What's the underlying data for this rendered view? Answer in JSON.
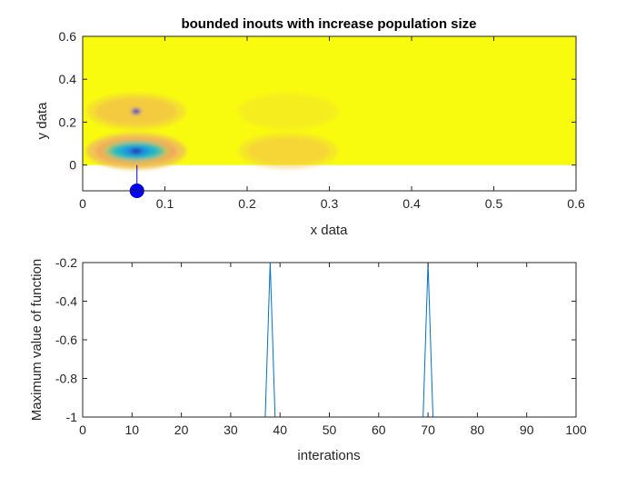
{
  "chart_data": [
    {
      "type": "heatmap",
      "title": "bounded inouts with increase population size",
      "xlabel": "x data",
      "ylabel": "y data",
      "xlim": [
        0,
        0.6
      ],
      "ylim": [
        -0.12,
        0.6
      ],
      "heatmap_ylim": [
        0,
        0.6
      ],
      "xticks": [
        0,
        0.1,
        0.2,
        0.3,
        0.4,
        0.5,
        0.6
      ],
      "xtick_labels": [
        "0",
        "0.1",
        "0.2",
        "0.3",
        "0.4",
        "0.5",
        "0.6"
      ],
      "yticks": [
        0,
        0.2,
        0.4,
        0.6
      ],
      "ytick_labels": [
        "0",
        "0.2",
        "0.4",
        "0.6"
      ],
      "colormap": "parula",
      "background_color": "#f9fb0e",
      "blobs": [
        {
          "x": 0.065,
          "y": 0.065,
          "intensity": 1.0
        },
        {
          "x": 0.065,
          "y": 0.25,
          "intensity": 0.55
        },
        {
          "x": 0.25,
          "y": 0.065,
          "intensity": 0.35
        },
        {
          "x": 0.25,
          "y": 0.25,
          "intensity": 0.12
        }
      ],
      "stem_marker": {
        "x": 0.066,
        "y": -0.12,
        "y_top": 0.0,
        "color": "#0000ff"
      },
      "grid": false
    },
    {
      "type": "line",
      "title": "",
      "xlabel": "interations",
      "ylabel": "Maximum value of function",
      "xlim": [
        0,
        100
      ],
      "ylim": [
        -1,
        -0.2
      ],
      "xticks": [
        0,
        10,
        20,
        30,
        40,
        50,
        60,
        70,
        80,
        90,
        100
      ],
      "xtick_labels": [
        "0",
        "10",
        "20",
        "30",
        "40",
        "50",
        "60",
        "70",
        "80",
        "90",
        "100"
      ],
      "yticks": [
        -1,
        -0.8,
        -0.6,
        -0.4,
        -0.2
      ],
      "ytick_labels": [
        "-1",
        "-0.8",
        "-0.6",
        "-0.4",
        "-0.2"
      ],
      "series": [
        {
          "color": "#0072bd",
          "x": [
            0,
            37,
            38,
            39,
            69,
            70,
            71,
            100
          ],
          "y": [
            -1,
            -1,
            -0.2,
            -1,
            -1,
            -0.2,
            -1,
            -1
          ]
        }
      ],
      "grid": false
    }
  ]
}
